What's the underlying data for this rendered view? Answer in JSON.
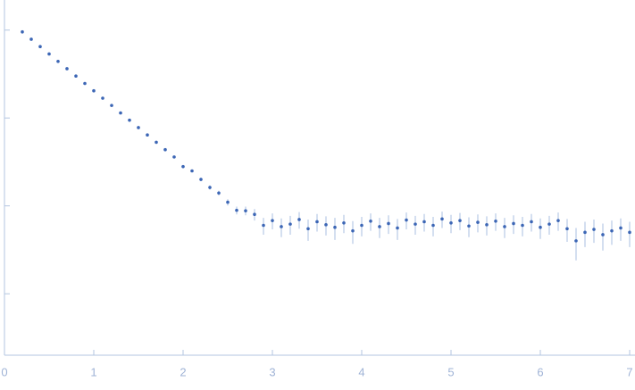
{
  "chart_data": {
    "type": "scatter",
    "x": [
      0.2,
      0.3,
      0.4,
      0.5,
      0.6,
      0.7,
      0.8,
      0.9,
      1.0,
      1.1,
      1.2,
      1.3,
      1.4,
      1.5,
      1.6,
      1.7,
      1.8,
      1.9,
      2.0,
      2.1,
      2.2,
      2.3,
      2.4,
      2.5,
      2.6,
      2.7,
      2.8,
      2.9,
      3.0,
      3.1,
      3.2,
      3.3,
      3.4,
      3.5,
      3.6,
      3.7,
      3.8,
      3.9,
      4.0,
      4.1,
      4.2,
      4.3,
      4.4,
      4.5,
      4.6,
      4.7,
      4.8,
      4.9,
      5.0,
      5.1,
      5.2,
      5.3,
      5.4,
      5.5,
      5.6,
      5.7,
      5.8,
      5.9,
      6.0,
      6.1,
      6.2,
      6.3,
      6.4,
      6.5,
      6.6,
      6.7,
      6.8,
      6.9,
      7.0
    ],
    "values": [
      0.954,
      0.787,
      0.649,
      0.535,
      0.441,
      0.364,
      0.3,
      0.247,
      0.204,
      0.168,
      0.139,
      0.114,
      0.0944,
      0.0778,
      0.0641,
      0.0529,
      0.0436,
      0.036,
      0.028,
      0.025,
      0.02,
      0.0162,
      0.014,
      0.011,
      0.0089,
      0.0088,
      0.008,
      0.006,
      0.0068,
      0.0058,
      0.0062,
      0.007,
      0.0055,
      0.0066,
      0.0061,
      0.0057,
      0.0064,
      0.0052,
      0.006,
      0.0067,
      0.0058,
      0.0063,
      0.0056,
      0.0069,
      0.0062,
      0.0066,
      0.006,
      0.0071,
      0.0064,
      0.0068,
      0.0059,
      0.0065,
      0.0061,
      0.0067,
      0.0058,
      0.0063,
      0.006,
      0.0066,
      0.0057,
      0.0062,
      0.0068,
      0.0055,
      0.004,
      0.005,
      0.0054,
      0.0047,
      0.0052,
      0.0056,
      0.005
    ],
    "errors": [
      0.04,
      0.01,
      0.008,
      0.006,
      0.005,
      0.004,
      0.003,
      0.003,
      0.002,
      0.002,
      0.0015,
      0.0012,
      0.001,
      0.0009,
      0.0008,
      0.0008,
      0.0008,
      0.0008,
      0.0009,
      0.0009,
      0.0009,
      0.0009,
      0.0009,
      0.0009,
      0.0009,
      0.001,
      0.0012,
      0.0013,
      0.0014,
      0.0014,
      0.0015,
      0.0015,
      0.0015,
      0.0015,
      0.0015,
      0.0016,
      0.0015,
      0.0015,
      0.0015,
      0.0015,
      0.0015,
      0.0015,
      0.0015,
      0.0015,
      0.0015,
      0.0015,
      0.0015,
      0.0015,
      0.0015,
      0.0015,
      0.0015,
      0.0015,
      0.0015,
      0.0015,
      0.0015,
      0.0015,
      0.0015,
      0.0015,
      0.0015,
      0.0015,
      0.0016,
      0.0016,
      0.0016,
      0.0016,
      0.0016,
      0.0016,
      0.0016,
      0.0016,
      0.0016
    ],
    "color": "#3c66b5",
    "error_color": "#aabfe2",
    "axis_color": "#b3c5e0",
    "xlim": [
      0,
      7.06
    ],
    "xticks": [
      0,
      1,
      2,
      3,
      4,
      5,
      6,
      7
    ],
    "ylim": [
      0.0002,
      2.2
    ],
    "yticks": [
      0.001,
      0.01,
      0.1,
      1
    ],
    "log_y": true
  }
}
